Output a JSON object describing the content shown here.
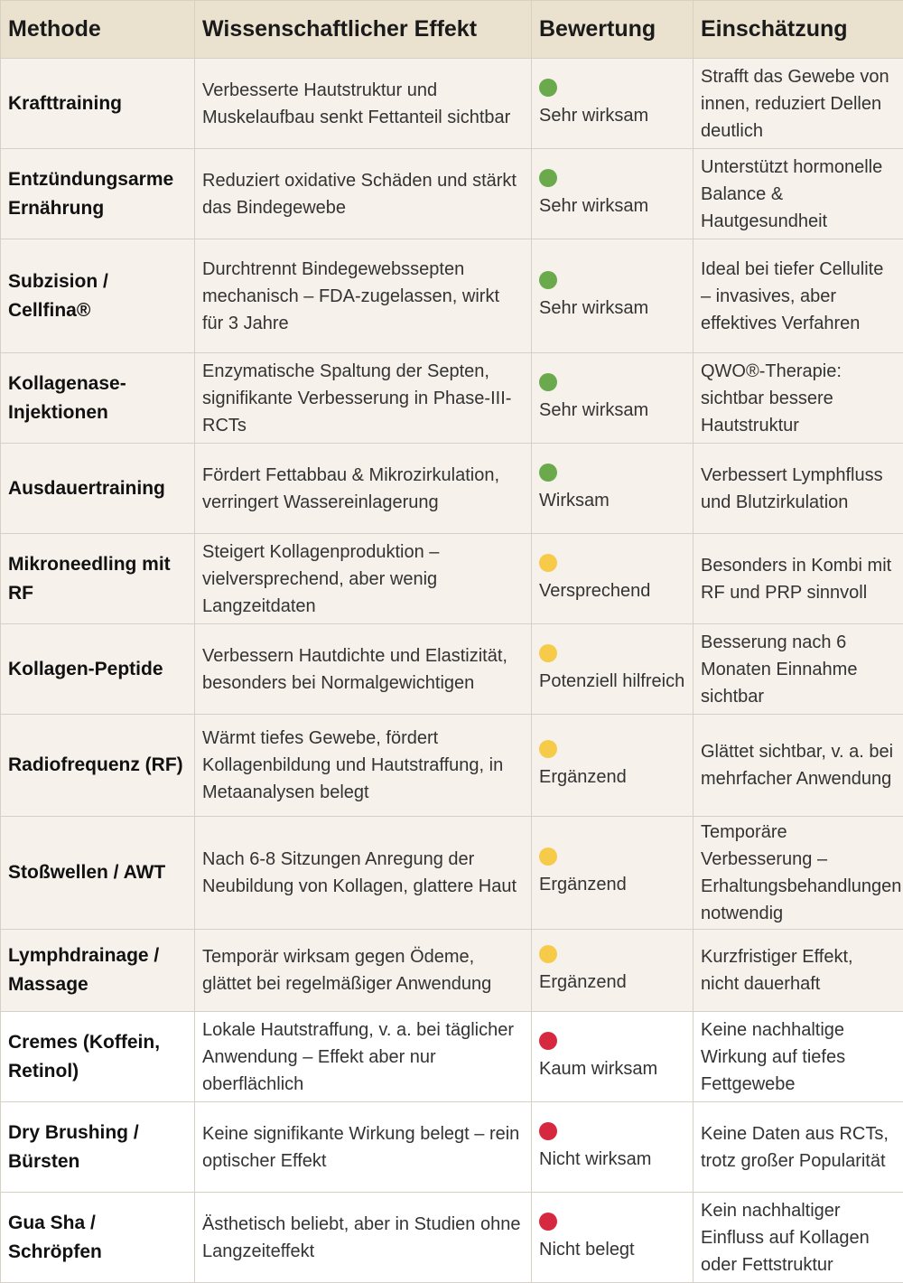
{
  "headers": [
    "Methode",
    "Wissenschaftlicher Effekt",
    "Bewertung",
    "Einschätzung"
  ],
  "colors": {
    "green": "#6aaa4c",
    "yellow": "#f6cb4a",
    "red": "#d6293f"
  },
  "rows": [
    {
      "method": "Krafttraining",
      "effect": "Verbesserte Hautstruktur und Muskelaufbau senkt Fettanteil sichtbar",
      "rating": "Sehr wirksam",
      "color": "#6aaa4c",
      "assessment": "Strafft das Gewebe von innen, reduziert Dellen deutlich"
    },
    {
      "method": "Entzündungsarme Ernährung",
      "effect": "Reduziert oxidative Schäden und stärkt das Bindegewebe",
      "rating": "Sehr wirksam",
      "color": "#6aaa4c",
      "assessment": "Unterstützt hormonelle Balance & Hautgesundheit"
    },
    {
      "method": "Subzision / Cellfina®",
      "effect": "Durchtrennt Bindegewebssepten mechanisch – FDA-zugelassen, wirkt für 3 Jahre",
      "rating": "Sehr wirksam",
      "color": "#6aaa4c",
      "assessment": "Ideal bei tiefer Cellulite – invasives, aber effektives Verfahren"
    },
    {
      "method": "Kollagenase-Injektionen",
      "effect": "Enzymatische Spaltung der Septen, signifikante Verbesserung in Phase-III-RCTs",
      "rating": "Sehr wirksam",
      "color": "#6aaa4c",
      "assessment": "QWO®-Therapie: sichtbar bessere Hautstruktur"
    },
    {
      "method": "Ausdauertraining",
      "effect": "Fördert Fettabbau & Mikrozirkulation, verringert Wassereinlagerung",
      "rating": "Wirksam",
      "color": "#6aaa4c",
      "assessment": "Verbessert Lymphfluss und Blutzirkulation"
    },
    {
      "method": "Mikroneedling mit RF",
      "effect": "Steigert Kollagenproduktion – vielversprechend, aber wenig Langzeitdaten",
      "rating": "Versprechend",
      "color": "#f6cb4a",
      "assessment": "Besonders in Kombi mit RF und PRP sinnvoll"
    },
    {
      "method": "Kollagen-Peptide",
      "effect": "Verbessern Hautdichte und Elastizität, besonders bei Normalgewichtigen",
      "rating": "Potenziell hilfreich",
      "color": "#f6cb4a",
      "assessment": "Besserung nach 6 Monaten Einnahme sichtbar"
    },
    {
      "method": "Radiofrequenz (RF)",
      "effect": "Wärmt tiefes Gewebe, fördert Kollagenbildung und Hautstraffung, in Metaanalysen belegt",
      "rating": "Ergänzend",
      "color": "#f6cb4a",
      "assessment": "Glättet sichtbar, v. a. bei mehrfacher Anwendung"
    },
    {
      "method": "Stoßwellen / AWT",
      "effect": "Nach 6-8 Sitzungen Anregung der Neubildung von Kollagen, glattere Haut",
      "rating": "Ergänzend",
      "color": "#f6cb4a",
      "assessment": "Temporäre Verbesserung – Erhaltungsbehandlungen notwendig"
    },
    {
      "method": "Lymphdrainage / Massage",
      "effect": "Temporär wirksam gegen Ödeme, glättet bei regelmäßiger Anwendung",
      "rating": "Ergänzend",
      "color": "#f6cb4a",
      "assessment": "Kurzfristiger Effekt, nicht dauerhaft"
    },
    {
      "method": "Cremes (Koffein, Retinol)",
      "effect": "Lokale Hautstraffung, v. a. bei täglicher Anwendung – Effekt aber nur oberflächlich",
      "rating": "Kaum wirksam",
      "color": "#d6293f",
      "assessment": "Keine nachhaltige Wirkung auf tiefes Fettgewebe"
    },
    {
      "method": "Dry Brushing / Bürsten",
      "effect": "Keine signifikante Wirkung belegt – rein optischer Effekt",
      "rating": "Nicht wirksam",
      "color": "#d6293f",
      "assessment": "Keine Daten aus RCTs, trotz großer Popularität"
    },
    {
      "method": "Gua Sha / Schröpfen",
      "effect": "Ästhetisch beliebt, aber in Studien ohne Langzeiteffekt",
      "rating": "Nicht belegt",
      "color": "#d6293f",
      "assessment": "Kein nachhaltiger Einfluss auf Kollagen oder Fettstruktur"
    }
  ]
}
